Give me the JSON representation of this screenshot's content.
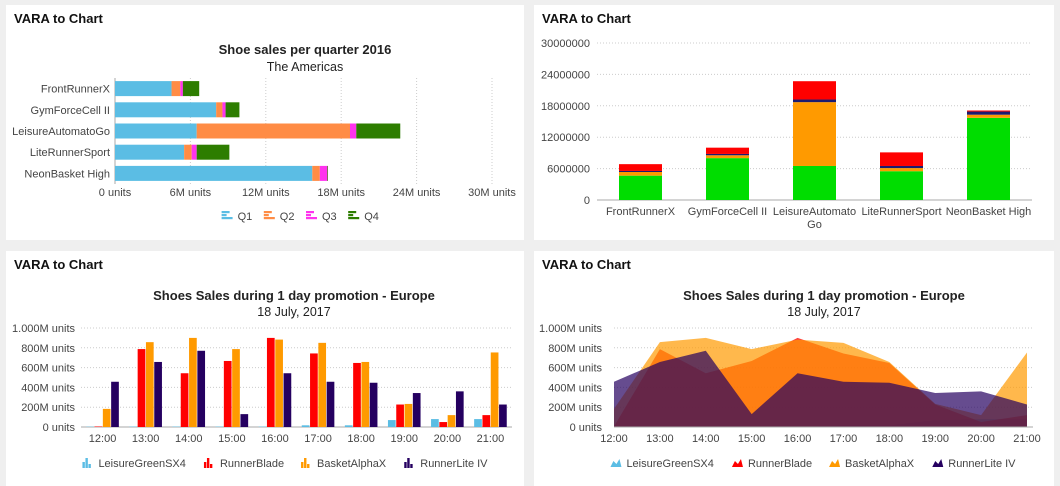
{
  "panels": [
    {
      "title": "VARA to Chart"
    },
    {
      "title": "VARA to Chart"
    },
    {
      "title": "VARA to Chart"
    },
    {
      "title": "VARA to Chart"
    }
  ],
  "chart_data": [
    {
      "type": "bar",
      "orientation": "horizontal",
      "stacked": true,
      "title": "Shoe sales per quarter 2016",
      "subtitle": "The Americas",
      "categories": [
        "FrontRunnerX",
        "GymForceCell II",
        "LeisureAutomatoGo",
        "LiteRunnerSport",
        "NeonBasket High"
      ],
      "series": [
        {
          "name": "Q1",
          "color": "#5bbde4",
          "values": [
            4.5,
            8.05,
            6.5,
            5.5,
            15.7
          ]
        },
        {
          "name": "Q2",
          "color": "#ff8c45",
          "values": [
            0.7,
            0.5,
            12.2,
            0.6,
            0.6
          ]
        },
        {
          "name": "Q3",
          "color": "#ff33ee",
          "values": [
            0.2,
            0.25,
            0.5,
            0.4,
            0.6
          ]
        },
        {
          "name": "Q4",
          "color": "#2d7d00",
          "values": [
            1.3,
            1.1,
            3.5,
            2.6,
            0.05
          ]
        }
      ],
      "unit_scale": "millions",
      "xlim": [
        0,
        30
      ],
      "xticks": [
        "0 units",
        "6M units",
        "12M units",
        "18M units",
        "24M units",
        "30M units"
      ],
      "grid": true,
      "legend": "bottom"
    },
    {
      "type": "bar",
      "orientation": "vertical",
      "stacked": true,
      "title": "",
      "categories": [
        "FrontRunnerX",
        "GymForceCell II",
        "LeisureAutomatoGo",
        "LiteRunnerSport",
        "NeonBasket High"
      ],
      "category_labels": [
        [
          "FrontRunnerX"
        ],
        [
          "GymForceCell II"
        ],
        [
          "LeisureAutomato",
          "Go"
        ],
        [
          "LiteRunnerSport"
        ],
        [
          "NeonBasket High"
        ]
      ],
      "series": [
        {
          "name": "Q1",
          "color": "#00dd00",
          "values": [
            4.65,
            8.0,
            6.5,
            5.5,
            15.7
          ]
        },
        {
          "name": "Q2",
          "color": "#ff9a00",
          "values": [
            0.7,
            0.55,
            12.2,
            0.6,
            0.6
          ]
        },
        {
          "name": "Q3",
          "color": "#1b1b70",
          "values": [
            0.2,
            0.25,
            0.5,
            0.4,
            0.6
          ]
        },
        {
          "name": "Q4",
          "color": "#ff0000",
          "values": [
            1.3,
            1.2,
            3.5,
            2.6,
            0.2
          ]
        }
      ],
      "unit_scale": "millions",
      "ylim": [
        0,
        30
      ],
      "yticks": [
        "0",
        "6000000",
        "12000000",
        "18000000",
        "24000000",
        "30000000"
      ],
      "grid": true,
      "legend": "none"
    },
    {
      "type": "bar",
      "orientation": "vertical",
      "stacked": false,
      "title": "Shoes Sales during 1 day promotion - Europe",
      "subtitle": "18 July, 2017",
      "categories": [
        "12:00",
        "13:00",
        "14:00",
        "15:00",
        "16:00",
        "17:00",
        "18:00",
        "19:00",
        "20:00",
        "21:00"
      ],
      "series": [
        {
          "name": "LeisureGreenSX4",
          "color": "#5bbde4",
          "values": [
            3,
            4,
            4,
            4,
            4,
            17,
            17,
            70,
            80,
            80
          ]
        },
        {
          "name": "RunnerBlade",
          "color": "#ff0000",
          "values": [
            5,
            787,
            543,
            667,
            900,
            743,
            647,
            227,
            50,
            120
          ]
        },
        {
          "name": "BasketAlphaX",
          "color": "#ff9a00",
          "values": [
            183,
            857,
            900,
            787,
            883,
            850,
            657,
            233,
            120,
            753
          ]
        },
        {
          "name": "RunnerLite IV",
          "color": "#250060",
          "values": [
            457,
            657,
            770,
            130,
            543,
            457,
            447,
            343,
            360,
            227
          ]
        }
      ],
      "unit_scale": "millions",
      "ylim": [
        0,
        1000
      ],
      "yticks": [
        "0 units",
        "200M units",
        "400M units",
        "600M units",
        "800M units",
        "1.000M units"
      ],
      "grid": true,
      "legend": "bottom"
    },
    {
      "type": "area",
      "stacked": false,
      "title": "Shoes Sales during 1 day promotion - Europe",
      "subtitle": "18 July, 2017",
      "categories": [
        "12:00",
        "13:00",
        "14:00",
        "15:00",
        "16:00",
        "17:00",
        "18:00",
        "19:00",
        "20:00",
        "21:00"
      ],
      "series": [
        {
          "name": "LeisureGreenSX4",
          "color": "#5bbde4",
          "values": [
            3,
            4,
            4,
            4,
            4,
            17,
            17,
            70,
            80,
            80
          ]
        },
        {
          "name": "RunnerBlade",
          "color": "#ff0000",
          "values": [
            5,
            787,
            543,
            667,
            900,
            743,
            647,
            227,
            50,
            120
          ]
        },
        {
          "name": "BasketAlphaX",
          "color": "#ff9a00",
          "values": [
            183,
            857,
            900,
            787,
            883,
            850,
            657,
            233,
            120,
            753
          ]
        },
        {
          "name": "RunnerLite IV",
          "color": "#250060",
          "values": [
            457,
            657,
            770,
            130,
            543,
            457,
            447,
            343,
            360,
            227
          ]
        }
      ],
      "unit_scale": "millions",
      "ylim": [
        0,
        1000
      ],
      "yticks": [
        "0 units",
        "200M units",
        "400M units",
        "600M units",
        "800M units",
        "1.000M units"
      ],
      "grid": true,
      "legend": "bottom"
    }
  ]
}
